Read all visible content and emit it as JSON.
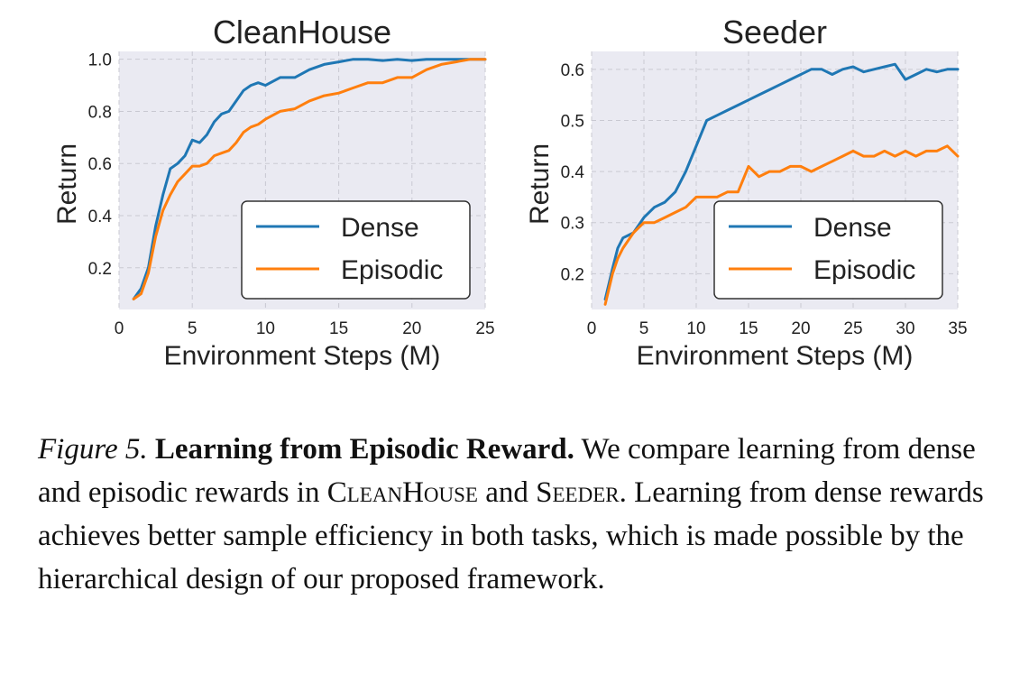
{
  "chart_data": [
    {
      "type": "line",
      "title": "CleanHouse",
      "xlabel": "Environment Steps (M)",
      "ylabel": "Return",
      "xlim": [
        0,
        25
      ],
      "ylim": [
        0.04,
        1.03
      ],
      "xticks": [
        0,
        5,
        10,
        15,
        20,
        25
      ],
      "yticks": [
        0.2,
        0.4,
        0.6,
        0.8,
        1.0
      ],
      "xtick_labels": [
        "0",
        "5",
        "10",
        "15",
        "20",
        "25"
      ],
      "ytick_labels": [
        "0.2",
        "0.4",
        "0.6",
        "0.8",
        "1.0"
      ],
      "grid": true,
      "legend_position": "lower-right",
      "series": [
        {
          "name": "Dense",
          "color": "#1f77b4",
          "x": [
            1,
            1.5,
            2,
            2.5,
            3,
            3.5,
            4,
            4.5,
            5,
            5.5,
            6,
            6.5,
            7,
            7.5,
            8,
            8.5,
            9,
            9.5,
            10,
            11,
            12,
            13,
            14,
            15,
            16,
            17,
            18,
            19,
            20,
            21,
            22,
            23,
            24,
            25
          ],
          "values": [
            0.08,
            0.12,
            0.2,
            0.36,
            0.48,
            0.58,
            0.6,
            0.63,
            0.69,
            0.68,
            0.71,
            0.76,
            0.79,
            0.8,
            0.84,
            0.88,
            0.9,
            0.91,
            0.9,
            0.93,
            0.93,
            0.96,
            0.98,
            0.99,
            1.0,
            1.0,
            0.995,
            1.0,
            0.995,
            1.0,
            1.0,
            1.0,
            1.0,
            1.0
          ]
        },
        {
          "name": "Episodic",
          "color": "#ff7f0e",
          "x": [
            1,
            1.5,
            2,
            2.5,
            3,
            3.5,
            4,
            4.5,
            5,
            5.5,
            6,
            6.5,
            7,
            7.5,
            8,
            8.5,
            9,
            9.5,
            10,
            11,
            12,
            13,
            14,
            15,
            16,
            17,
            18,
            19,
            20,
            21,
            22,
            23,
            24,
            25
          ],
          "values": [
            0.08,
            0.1,
            0.18,
            0.32,
            0.42,
            0.48,
            0.53,
            0.56,
            0.59,
            0.59,
            0.6,
            0.63,
            0.64,
            0.65,
            0.68,
            0.72,
            0.74,
            0.75,
            0.77,
            0.8,
            0.81,
            0.84,
            0.86,
            0.87,
            0.89,
            0.91,
            0.91,
            0.93,
            0.93,
            0.96,
            0.98,
            0.99,
            1.0,
            1.0
          ]
        }
      ]
    },
    {
      "type": "line",
      "title": "Seeder",
      "xlabel": "Environment Steps (M)",
      "ylabel": "Return",
      "xlim": [
        0,
        35
      ],
      "ylim": [
        0.13,
        0.635
      ],
      "xticks": [
        0,
        5,
        10,
        15,
        20,
        25,
        30,
        35
      ],
      "yticks": [
        0.2,
        0.3,
        0.4,
        0.5,
        0.6
      ],
      "xtick_labels": [
        "0",
        "5",
        "10",
        "15",
        "20",
        "25",
        "30",
        "35"
      ],
      "ytick_labels": [
        "0.2",
        "0.3",
        "0.4",
        "0.5",
        "0.6"
      ],
      "grid": true,
      "legend_position": "lower-right",
      "series": [
        {
          "name": "Dense",
          "color": "#1f77b4",
          "x": [
            1.3,
            2,
            2.5,
            3,
            4,
            5,
            6,
            7,
            8,
            9,
            10,
            11,
            12,
            13,
            14,
            15,
            16,
            17,
            18,
            19,
            20,
            21,
            22,
            23,
            24,
            25,
            26,
            27,
            28,
            29,
            30,
            31,
            32,
            33,
            34,
            35
          ],
          "values": [
            0.15,
            0.21,
            0.25,
            0.27,
            0.28,
            0.31,
            0.33,
            0.34,
            0.36,
            0.4,
            0.45,
            0.5,
            0.51,
            0.52,
            0.53,
            0.54,
            0.55,
            0.56,
            0.57,
            0.58,
            0.59,
            0.6,
            0.6,
            0.59,
            0.6,
            0.605,
            0.595,
            0.6,
            0.605,
            0.61,
            0.58,
            0.59,
            0.6,
            0.595,
            0.6,
            0.6
          ]
        },
        {
          "name": "Episodic",
          "color": "#ff7f0e",
          "x": [
            1.3,
            2,
            2.5,
            3,
            4,
            5,
            6,
            7,
            8,
            9,
            10,
            11,
            12,
            13,
            14,
            15,
            16,
            17,
            18,
            19,
            20,
            21,
            22,
            23,
            24,
            25,
            26,
            27,
            28,
            29,
            30,
            31,
            32,
            33,
            34,
            35
          ],
          "values": [
            0.14,
            0.2,
            0.23,
            0.25,
            0.28,
            0.3,
            0.3,
            0.31,
            0.32,
            0.33,
            0.35,
            0.35,
            0.35,
            0.36,
            0.36,
            0.41,
            0.39,
            0.4,
            0.4,
            0.41,
            0.41,
            0.4,
            0.41,
            0.42,
            0.43,
            0.44,
            0.43,
            0.43,
            0.44,
            0.43,
            0.44,
            0.43,
            0.44,
            0.44,
            0.45,
            0.43
          ]
        }
      ]
    }
  ],
  "caption": {
    "label": "Figure 5.",
    "heading": "Learning from Episodic Reward.",
    "text_1": " We compare learning from dense and episodic rewards in ",
    "env_1": "CleanHouse",
    "text_2": " and ",
    "env_2": "Seeder",
    "text_3": ". Learning from dense rewards achieves better sample efficiency in both tasks, which is made possible by the hierarchical design of our proposed framework."
  },
  "colors": {
    "plot_background": "#eaeaf2",
    "grid": "#c9c9d2",
    "legend_border": "#333333"
  }
}
